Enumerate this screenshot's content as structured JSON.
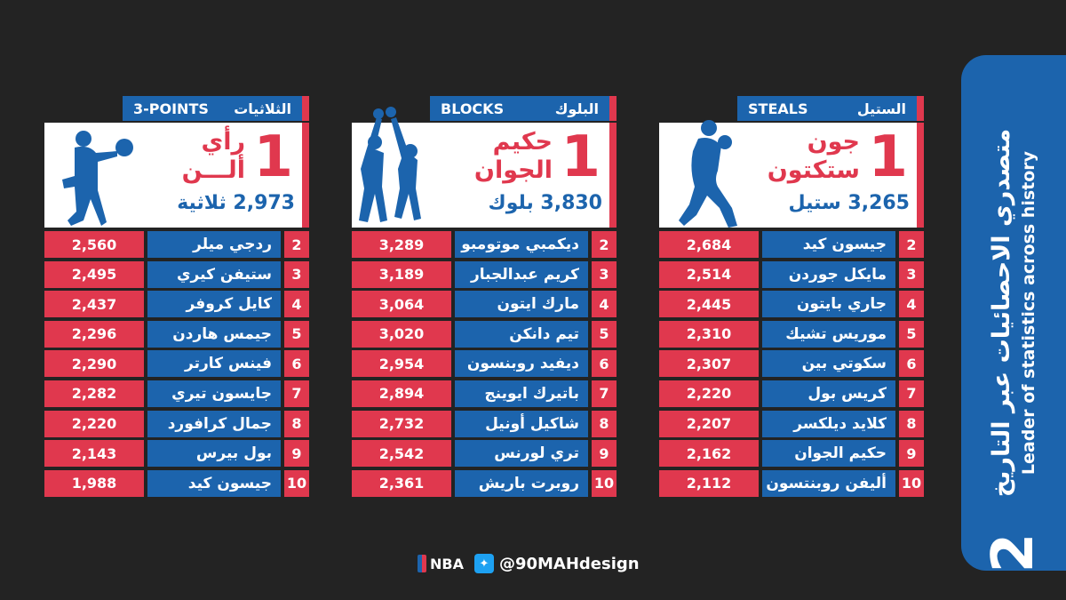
{
  "banner": {
    "title_ar": "متصدري الاحصائيات عبر التاريخ",
    "title_en": "Leader of statistics across history",
    "number": "2"
  },
  "columns": [
    {
      "id": "steals",
      "label_en": "STEALS",
      "label_ar": "الستيل",
      "leader": {
        "rank": "1",
        "name_line1": "جون",
        "name_line2": "ستكتون",
        "total": "3,265 ستيل"
      },
      "rows": [
        {
          "rank": "2",
          "name": "جيسون كيد",
          "value": "2,684"
        },
        {
          "rank": "3",
          "name": "مايكل جوردن",
          "value": "2,514"
        },
        {
          "rank": "4",
          "name": "جاري بايتون",
          "value": "2,445"
        },
        {
          "rank": "5",
          "name": "موريس تشيك",
          "value": "2,310"
        },
        {
          "rank": "6",
          "name": "سكوتي بين",
          "value": "2,307"
        },
        {
          "rank": "7",
          "name": "كريس بول",
          "value": "2,220"
        },
        {
          "rank": "8",
          "name": "كلايد ديلكسر",
          "value": "2,207"
        },
        {
          "rank": "9",
          "name": "حكيم الجوان",
          "value": "2,162"
        },
        {
          "rank": "10",
          "name": "أليفن روبنتسون",
          "value": "2,112"
        }
      ]
    },
    {
      "id": "blocks",
      "label_en": "BLOCKS",
      "label_ar": "البلوك",
      "leader": {
        "rank": "1",
        "name_line1": "حكيم",
        "name_line2": "الجوان",
        "total": "3,830 بلوك"
      },
      "rows": [
        {
          "rank": "2",
          "name": "ديكمبي موتومبو",
          "value": "3,289"
        },
        {
          "rank": "3",
          "name": "كريم عبدالجبار",
          "value": "3,189"
        },
        {
          "rank": "4",
          "name": "مارك ايتون",
          "value": "3,064"
        },
        {
          "rank": "5",
          "name": "تيم دانكن",
          "value": "3,020"
        },
        {
          "rank": "6",
          "name": "ديفيد روبنسون",
          "value": "2,954"
        },
        {
          "rank": "7",
          "name": "باتيرك ايوينج",
          "value": "2,894"
        },
        {
          "rank": "8",
          "name": "شاكيل أونيل",
          "value": "2,732"
        },
        {
          "rank": "9",
          "name": "تري لورنس",
          "value": "2,542"
        },
        {
          "rank": "10",
          "name": "روبرت باريش",
          "value": "2,361"
        }
      ]
    },
    {
      "id": "threes",
      "label_en": "3-POINTS",
      "label_ar": "الثلاثيات",
      "leader": {
        "rank": "1",
        "name_line1": "رأي",
        "name_line2": "ألـــن",
        "total": "2,973 ثلاثية"
      },
      "rows": [
        {
          "rank": "2",
          "name": "ردجي ميلر",
          "value": "2,560"
        },
        {
          "rank": "3",
          "name": "ستيفن كيري",
          "value": "2,495"
        },
        {
          "rank": "4",
          "name": "كايل كروفر",
          "value": "2,437"
        },
        {
          "rank": "5",
          "name": "جيمس هاردن",
          "value": "2,296"
        },
        {
          "rank": "6",
          "name": "فينس كارتر",
          "value": "2,290"
        },
        {
          "rank": "7",
          "name": "جايسون تيري",
          "value": "2,282"
        },
        {
          "rank": "8",
          "name": "جمال كرافورد",
          "value": "2,220"
        },
        {
          "rank": "9",
          "name": "بول بيرس",
          "value": "2,143"
        },
        {
          "rank": "10",
          "name": "جيسون كيد",
          "value": "1,988"
        }
      ]
    }
  ],
  "footer": {
    "nba": "NBA",
    "handle": "@90MAHdesign"
  },
  "colors": {
    "background": "#232323",
    "blue": "#1c64ad",
    "red": "#e0384e",
    "white": "#ffffff"
  }
}
